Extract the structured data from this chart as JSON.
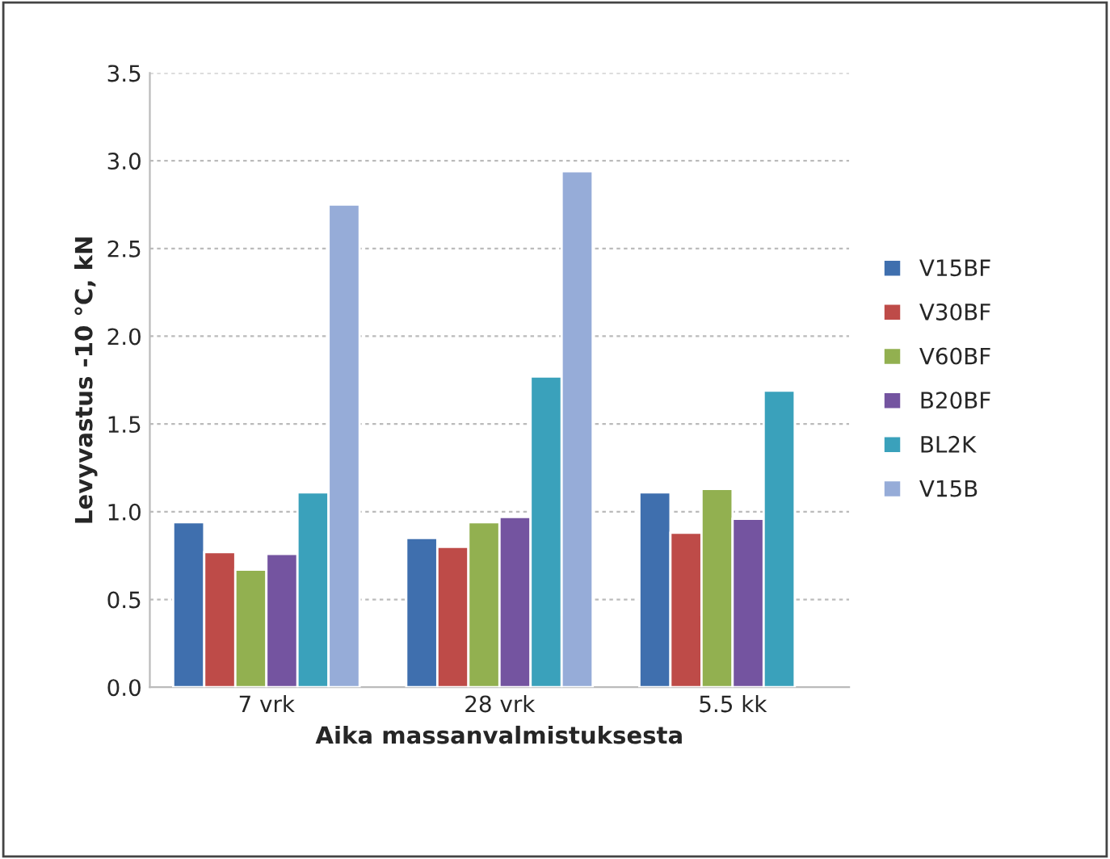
{
  "chart_data": {
    "type": "bar",
    "xlabel": "Aika massanvalmistuksesta",
    "ylabel": "Levyvastus -10 °C, kN",
    "categories": [
      "7 vrk",
      "28 vrk",
      "5.5 kk"
    ],
    "series": [
      {
        "name": "V15BF",
        "color": "#3f6fae",
        "values": [
          0.94,
          0.85,
          1.11
        ]
      },
      {
        "name": "V30BF",
        "color": "#be4b48",
        "values": [
          0.77,
          0.8,
          0.88
        ]
      },
      {
        "name": "V60BF",
        "color": "#92b050",
        "values": [
          0.67,
          0.94,
          1.13
        ]
      },
      {
        "name": "B20BF",
        "color": "#7454a0",
        "values": [
          0.76,
          0.97,
          0.96
        ]
      },
      {
        "name": "BL2K",
        "color": "#3aa1bb",
        "values": [
          1.11,
          1.77,
          1.69
        ]
      },
      {
        "name": "V15B",
        "color": "#96acd8",
        "values": [
          2.75,
          2.94,
          null
        ]
      }
    ],
    "ylim": [
      0,
      3.5
    ],
    "yticks": [
      {
        "value": 0,
        "label": "0.0"
      },
      {
        "value": 0.5,
        "label": "0.5"
      },
      {
        "value": 1,
        "label": "1.0"
      },
      {
        "value": 1.5,
        "label": "1.5"
      },
      {
        "value": 2,
        "label": "2.0"
      },
      {
        "value": 2.5,
        "label": "2.5"
      },
      {
        "value": 3,
        "label": "3.0"
      },
      {
        "value": 3.5,
        "label": "3.5"
      }
    ],
    "grid": "y",
    "legend": "right"
  }
}
